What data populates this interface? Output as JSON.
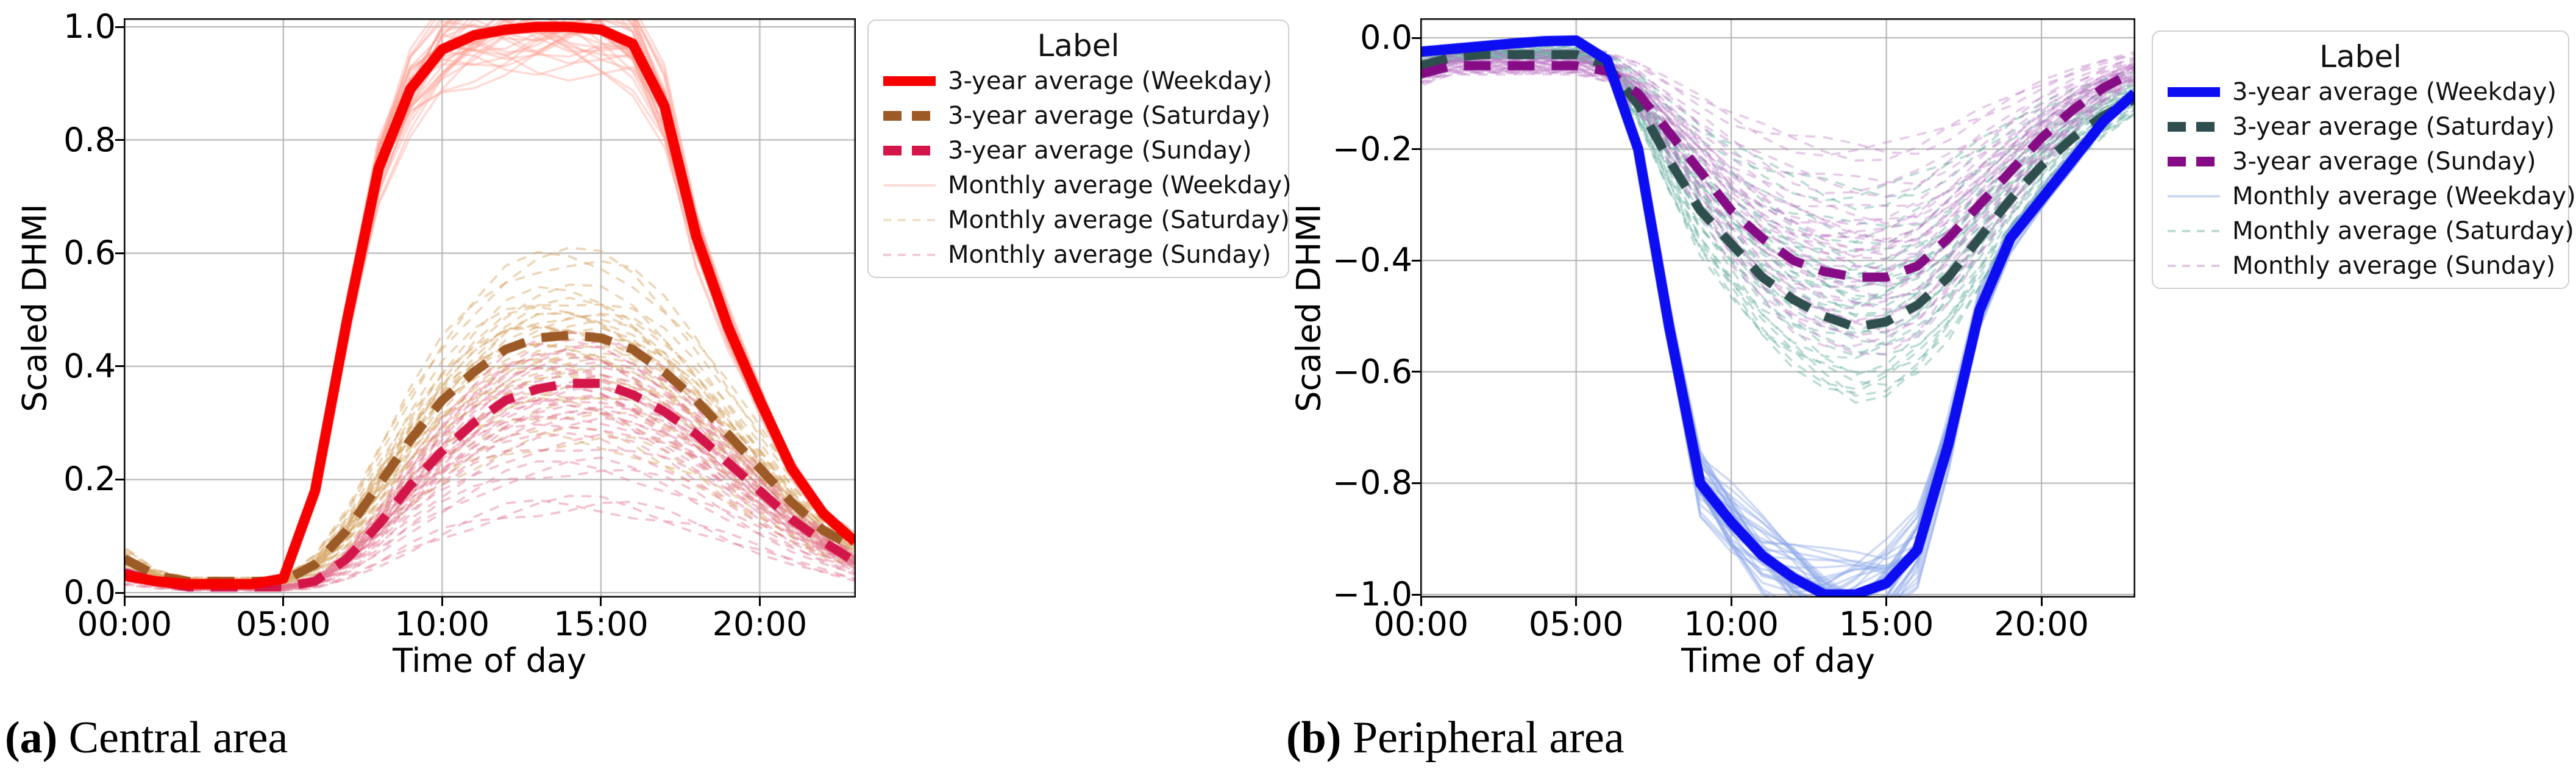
{
  "page": {
    "background": "#ffffff",
    "grid_color": "#b0b0b0",
    "spine_color": "#000000"
  },
  "chart_data": [
    {
      "type": "line",
      "panel_label": "(a)",
      "panel_caption": "Central area",
      "xlabel": "Time of day",
      "ylabel": "Scaled DHMI",
      "legend_title": "Label",
      "legend_position": "right",
      "grid": true,
      "x_hours": [
        0,
        1,
        2,
        3,
        4,
        5,
        6,
        7,
        8,
        9,
        10,
        11,
        12,
        13,
        14,
        15,
        16,
        17,
        18,
        19,
        20,
        21,
        22,
        23
      ],
      "xticks": {
        "hours": [
          0,
          5,
          10,
          15,
          20
        ],
        "labels": [
          "00:00",
          "05:00",
          "10:00",
          "15:00",
          "20:00"
        ]
      },
      "yticks": {
        "values": [
          1.0,
          0.8,
          0.6,
          0.4,
          0.2,
          0.0
        ],
        "labels": [
          "1.0",
          "0.8",
          "0.6",
          "0.4",
          "0.2",
          "0.0"
        ]
      },
      "ylim": [
        0.0,
        1.0
      ],
      "series": [
        {
          "name": "3-year average (Weekday)",
          "role": "3-year average",
          "day": "Weekday",
          "line": "solid",
          "width": "thick",
          "color": "#f70000",
          "values": [
            0.03,
            0.02,
            0.015,
            0.015,
            0.015,
            0.025,
            0.18,
            0.48,
            0.75,
            0.89,
            0.96,
            0.985,
            0.995,
            1.0,
            1.0,
            0.995,
            0.97,
            0.86,
            0.63,
            0.47,
            0.34,
            0.22,
            0.14,
            0.09
          ]
        },
        {
          "name": "3-year average (Saturday)",
          "role": "3-year average",
          "day": "Saturday",
          "line": "dashed",
          "width": "thick",
          "color": "#9c5a26",
          "values": [
            0.06,
            0.03,
            0.02,
            0.02,
            0.02,
            0.02,
            0.05,
            0.11,
            0.19,
            0.27,
            0.34,
            0.39,
            0.43,
            0.45,
            0.455,
            0.45,
            0.43,
            0.39,
            0.34,
            0.28,
            0.22,
            0.16,
            0.11,
            0.08
          ]
        },
        {
          "name": "3-year average (Sunday)",
          "role": "3-year average",
          "day": "Sunday",
          "line": "dashed",
          "width": "thick",
          "color": "#d4154a",
          "values": [
            0.035,
            0.02,
            0.01,
            0.01,
            0.01,
            0.01,
            0.02,
            0.06,
            0.12,
            0.19,
            0.25,
            0.3,
            0.34,
            0.36,
            0.37,
            0.37,
            0.35,
            0.32,
            0.28,
            0.23,
            0.18,
            0.13,
            0.09,
            0.055
          ]
        },
        {
          "name": "Monthly average (Weekday)",
          "role": "Monthly average",
          "day": "Weekday",
          "line": "solid",
          "width": "thin",
          "color": "#ff9d92",
          "legend_color": "#fadcd7",
          "alpha": 0.4,
          "base": 0,
          "factors": [
            0.96,
            0.99,
            1.0,
            1.02,
            1.03,
            0.98,
            1.0,
            1.04,
            0.95,
            1.01,
            0.99,
            1.02
          ]
        },
        {
          "name": "Monthly average (Saturday)",
          "role": "Monthly average",
          "day": "Saturday",
          "line": "dashed",
          "width": "thin",
          "color": "#d8a868",
          "legend_color": "#efe1ca",
          "alpha": 0.5,
          "base": 1,
          "factors": [
            0.6,
            0.72,
            0.8,
            0.88,
            0.95,
            1.0,
            1.05,
            1.1,
            1.16,
            1.05,
            0.9,
            1.3
          ]
        },
        {
          "name": "Monthly average (Sunday)",
          "role": "Monthly average",
          "day": "Sunday",
          "line": "dashed",
          "width": "thin",
          "color": "#e2708f",
          "legend_color": "#f3cbd6",
          "alpha": 0.45,
          "base": 2,
          "factors": [
            0.42,
            0.6,
            0.72,
            0.82,
            0.9,
            0.97,
            1.02,
            1.08,
            1.13,
            0.95,
            0.85,
            1.2
          ]
        }
      ]
    },
    {
      "type": "line",
      "panel_label": "(b)",
      "panel_caption": "Peripheral area",
      "xlabel": "Time of day",
      "ylabel": "Scaled DHMI",
      "legend_title": "Label",
      "legend_position": "right",
      "grid": true,
      "x_hours": [
        0,
        1,
        2,
        3,
        4,
        5,
        6,
        7,
        8,
        9,
        10,
        11,
        12,
        13,
        14,
        15,
        16,
        17,
        18,
        19,
        20,
        21,
        22,
        23
      ],
      "xticks": {
        "hours": [
          0,
          5,
          10,
          15,
          20
        ],
        "labels": [
          "00:00",
          "05:00",
          "10:00",
          "15:00",
          "20:00"
        ]
      },
      "yticks": {
        "values": [
          0.0,
          -0.2,
          -0.4,
          -0.6,
          -0.8,
          -1.0
        ],
        "labels": [
          "0.0",
          "−0.2",
          "−0.4",
          "−0.6",
          "−0.8",
          "−1.0"
        ]
      },
      "ylim": [
        -1.0,
        0.0
      ],
      "series": [
        {
          "name": "3-year average (Weekday)",
          "role": "3-year average",
          "day": "Weekday",
          "line": "solid",
          "width": "thick",
          "color": "#0d0df2",
          "values": [
            -0.025,
            -0.02,
            -0.015,
            -0.01,
            -0.006,
            -0.005,
            -0.04,
            -0.2,
            -0.52,
            -0.8,
            -0.87,
            -0.93,
            -0.97,
            -1.0,
            -1.0,
            -0.98,
            -0.92,
            -0.73,
            -0.49,
            -0.36,
            -0.29,
            -0.22,
            -0.15,
            -0.1
          ]
        },
        {
          "name": "3-year average (Saturday)",
          "role": "3-year average",
          "day": "Saturday",
          "line": "dashed",
          "width": "thick",
          "color": "#2f4f4f",
          "values": [
            -0.05,
            -0.035,
            -0.03,
            -0.03,
            -0.03,
            -0.03,
            -0.05,
            -0.12,
            -0.22,
            -0.31,
            -0.37,
            -0.43,
            -0.47,
            -0.5,
            -0.52,
            -0.51,
            -0.48,
            -0.43,
            -0.36,
            -0.29,
            -0.23,
            -0.18,
            -0.14,
            -0.11
          ]
        },
        {
          "name": "3-year average (Sunday)",
          "role": "3-year average",
          "day": "Sunday",
          "line": "dashed",
          "width": "thick",
          "color": "#850c85",
          "values": [
            -0.065,
            -0.05,
            -0.05,
            -0.05,
            -0.05,
            -0.05,
            -0.06,
            -0.1,
            -0.17,
            -0.24,
            -0.31,
            -0.36,
            -0.4,
            -0.42,
            -0.43,
            -0.43,
            -0.41,
            -0.36,
            -0.3,
            -0.24,
            -0.18,
            -0.13,
            -0.09,
            -0.06
          ]
        },
        {
          "name": "Monthly average (Weekday)",
          "role": "Monthly average",
          "day": "Weekday",
          "line": "solid",
          "width": "thin",
          "color": "#8fa8e8",
          "legend_color": "#ccd9f2",
          "alpha": 0.45,
          "base": 0,
          "factors": [
            0.97,
            0.99,
            1.01,
            1.03,
            0.98,
            1.0,
            1.02,
            0.96,
            1.0,
            0.99,
            1.03,
            0.98
          ]
        },
        {
          "name": "Monthly average (Saturday)",
          "role": "Monthly average",
          "day": "Saturday",
          "line": "dashed",
          "width": "thin",
          "color": "#63ac9f",
          "legend_color": "#bddcd5",
          "alpha": 0.45,
          "base": 1,
          "factors": [
            0.55,
            0.68,
            0.78,
            0.86,
            0.93,
            1.0,
            1.06,
            1.12,
            1.2,
            0.9,
            0.82,
            1.22
          ]
        },
        {
          "name": "Monthly average (Sunday)",
          "role": "Monthly average",
          "day": "Sunday",
          "line": "dashed",
          "width": "thin",
          "color": "#bc74c4",
          "legend_color": "#e3c7e3",
          "alpha": 0.4,
          "base": 2,
          "factors": [
            0.47,
            0.62,
            0.74,
            0.84,
            0.92,
            1.0,
            1.07,
            1.14,
            0.88,
            0.8,
            1.2,
            1.28
          ]
        }
      ]
    }
  ]
}
